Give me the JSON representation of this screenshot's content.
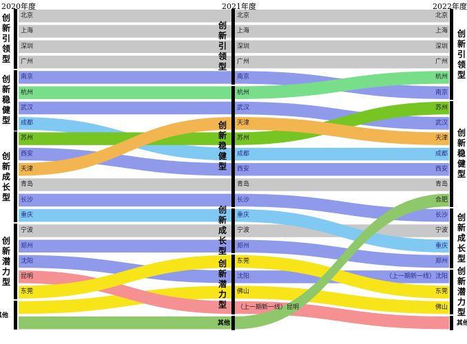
{
  "years": [
    "2020年度",
    "2021年度",
    "2022年度"
  ],
  "colors": {
    "gray": "#c8c8c8",
    "blue": "#8f9bea",
    "green_light": "#79de8a",
    "sky": "#7fc9f3",
    "green_dark": "#76c522",
    "orange": "#f3b54f",
    "pink": "#f59193",
    "yellow": "#f7e51a",
    "olive_green": "#8fc86a"
  },
  "categories": {
    "c2020": [
      {
        "label": "创新引领型",
        "from": 0,
        "to": 3
      },
      {
        "label": "创新稳健型",
        "from": 4,
        "to": 7
      },
      {
        "label": "创新成长型",
        "from": 8,
        "to": 13
      },
      {
        "label": "创新潜力型",
        "from": 14,
        "to": 18
      },
      {
        "label": "其他",
        "from": 19,
        "to": 20
      }
    ],
    "c2021": [
      {
        "label": "创新引领型",
        "from": 0,
        "to": 4
      },
      {
        "label": "创新稳健型",
        "from": 5,
        "to": 12
      },
      {
        "label": "创新成长型",
        "from": 13,
        "to": 15
      },
      {
        "label": "创新潜力型",
        "from": 16,
        "to": 19
      },
      {
        "label": "其他",
        "from": 20,
        "to": 20
      }
    ],
    "c2022": [
      {
        "label": "创新引领型",
        "from": 0,
        "to": 5
      },
      {
        "label": "创新稳健型",
        "from": 6,
        "to": 12
      },
      {
        "label": "创新成长型",
        "from": 13,
        "to": 16
      },
      {
        "label": "创新潜力型",
        "from": 17,
        "to": 19
      },
      {
        "label": "其他",
        "from": 20,
        "to": 20
      }
    ]
  },
  "cities": [
    {
      "name": "北京",
      "color": "gray",
      "r2020": 0,
      "r2021": 0,
      "r2022": 0,
      "l2020": "北京",
      "l2021": "北京",
      "l2022": "北京"
    },
    {
      "name": "上海",
      "color": "gray",
      "r2020": 1,
      "r2021": 1,
      "r2022": 1,
      "l2020": "上海",
      "l2021": "上海",
      "l2022": "上海"
    },
    {
      "name": "深圳",
      "color": "gray",
      "r2020": 2,
      "r2021": 2,
      "r2022": 2,
      "l2020": "深圳",
      "l2021": "深圳",
      "l2022": "深圳"
    },
    {
      "name": "广州",
      "color": "gray",
      "r2020": 3,
      "r2021": 3,
      "r2022": 3,
      "l2020": "广州",
      "l2021": "广州",
      "l2022": "广州"
    },
    {
      "name": "南京",
      "color": "blue",
      "r2020": 4,
      "r2021": 4,
      "r2022": 5,
      "l2020": "南京",
      "l2021": "南京",
      "l2022": "南京"
    },
    {
      "name": "杭州",
      "color": "green_light",
      "r2020": 5,
      "r2021": 5,
      "r2022": 4,
      "l2020": "杭州",
      "l2021": "杭州",
      "l2022": "杭州"
    },
    {
      "name": "武汉",
      "color": "blue",
      "r2020": 6,
      "r2021": 6,
      "r2022": 7,
      "l2020": "武汉",
      "l2021": "武汉",
      "l2022": "武汉"
    },
    {
      "name": "成都",
      "color": "sky",
      "r2020": 7,
      "r2021": 9,
      "r2022": 9,
      "l2020": "成都",
      "l2021": "成都",
      "l2022": "成都"
    },
    {
      "name": "苏州",
      "color": "green_dark",
      "r2020": 8,
      "r2021": 8,
      "r2022": 6,
      "l2020": "苏州",
      "l2021": "苏州",
      "l2022": "苏州"
    },
    {
      "name": "西安",
      "color": "blue",
      "r2020": 9,
      "r2021": 10,
      "r2022": 10,
      "l2020": "西安",
      "l2021": "西安",
      "l2022": "西安"
    },
    {
      "name": "天津",
      "color": "orange",
      "r2020": 10,
      "r2021": 7,
      "r2022": 8,
      "l2020": "天津",
      "l2021": "天津",
      "l2022": "天津"
    },
    {
      "name": "青岛",
      "color": "gray",
      "r2020": 11,
      "r2021": 11,
      "r2022": 11,
      "l2020": "青岛",
      "l2021": "青岛",
      "l2022": "青岛"
    },
    {
      "name": "长沙",
      "color": "blue",
      "r2020": 12,
      "r2021": 12,
      "r2022": 13,
      "l2020": "长沙",
      "l2021": "长沙",
      "l2022": "长沙"
    },
    {
      "name": "重庆",
      "color": "sky",
      "r2020": 13,
      "r2021": 13,
      "r2022": 15,
      "l2020": "重庆",
      "l2021": "重庆",
      "l2022": "重庆"
    },
    {
      "name": "宁波",
      "color": "gray",
      "r2020": 14,
      "r2021": 14,
      "r2022": 14,
      "l2020": "宁波",
      "l2021": "宁波",
      "l2022": "宁波"
    },
    {
      "name": "郑州",
      "color": "blue",
      "r2020": 15,
      "r2021": 15,
      "r2022": 16,
      "l2020": "郑州",
      "l2021": "郑州",
      "l2022": "郑州"
    },
    {
      "name": "沈阳",
      "color": "blue",
      "r2020": 16,
      "r2021": 17,
      "r2022": 17,
      "l2020": "沈阳",
      "l2021": "沈阳",
      "l2022": "（上一期新一线）沈阳"
    },
    {
      "name": "昆明",
      "color": "pink",
      "r2020": 17,
      "r2021": 19,
      "r2022": 20,
      "l2020": "昆明",
      "l2021": "（上一期新一线）昆明",
      "l2022": ""
    },
    {
      "name": "东莞",
      "color": "yellow",
      "r2020": 18,
      "r2021": 16,
      "r2022": 18,
      "l2020": "东莞",
      "l2021": "东莞",
      "l2022": "东莞"
    },
    {
      "name": "佛山",
      "color": "yellow",
      "r2020": 19,
      "r2021": 18,
      "r2022": 19,
      "l2020": "",
      "l2021": "佛山",
      "l2022": "佛山"
    },
    {
      "name": "合肥",
      "color": "olive_green",
      "r2020": 20,
      "r2021": 20,
      "r2022": 12,
      "l2020": "",
      "l2021": "",
      "l2022": "合肥"
    }
  ]
}
